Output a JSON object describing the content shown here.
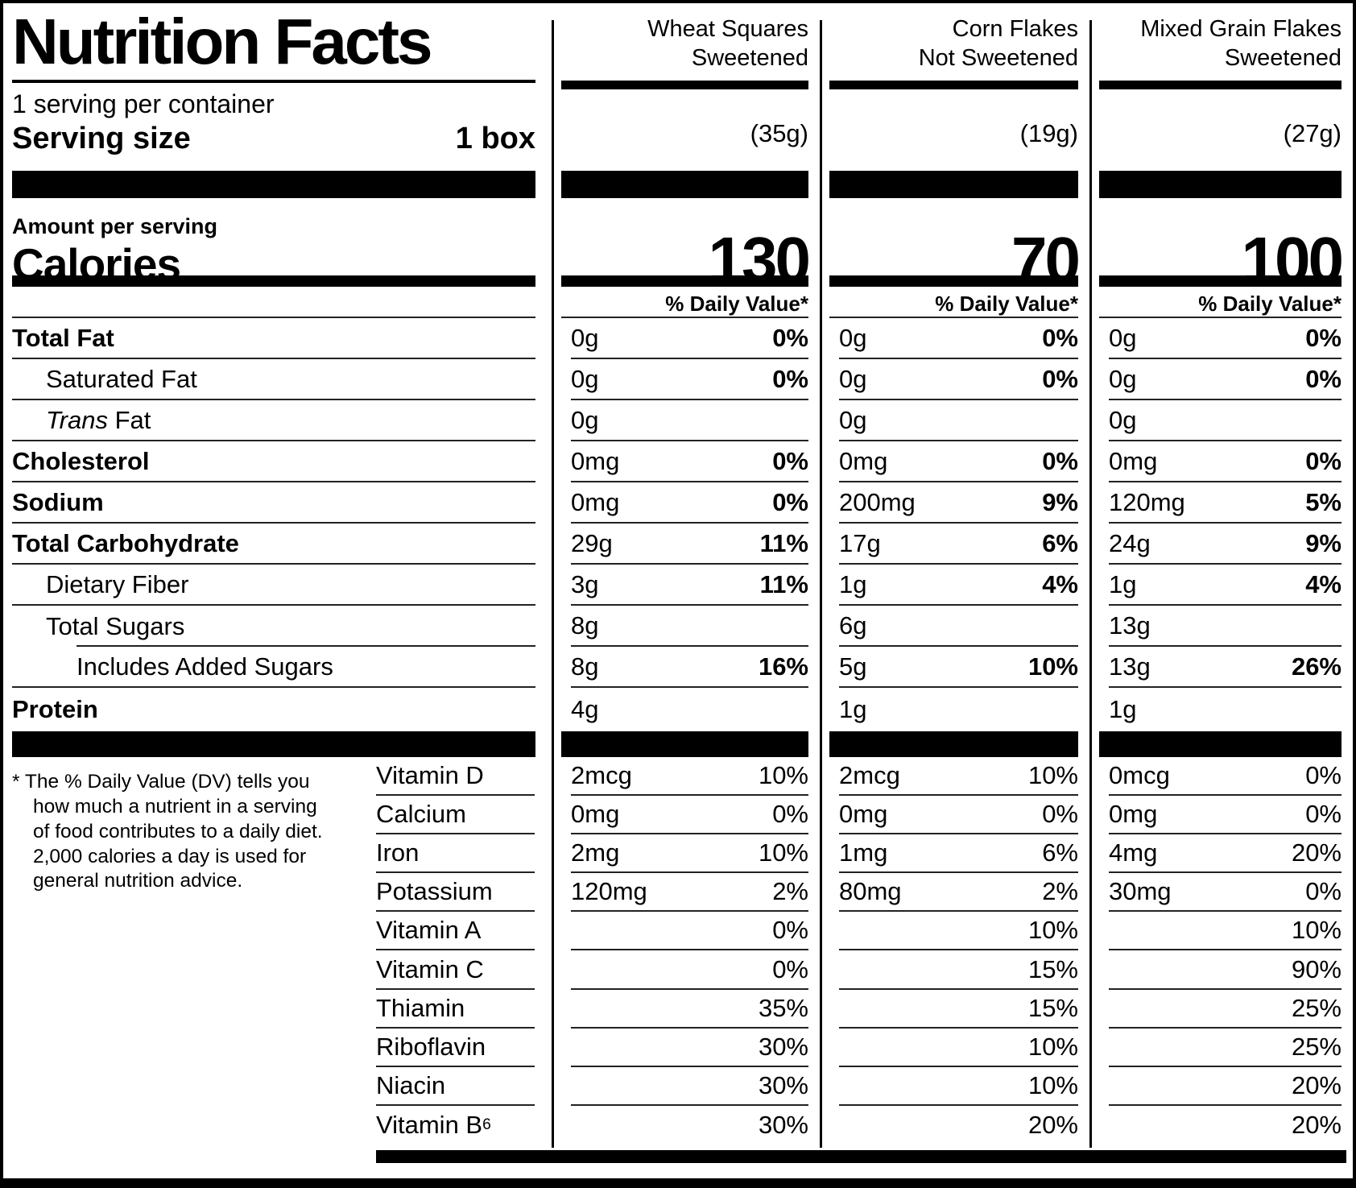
{
  "label": {
    "title": "Nutrition Facts",
    "servings_per_container": "1 serving per container",
    "serving_size_label": "Serving size",
    "serving_size_value": "1 box",
    "amount_per_serving_label": "Amount per serving",
    "calories_label": "Calories",
    "daily_value_header": "% Daily Value*",
    "footnote_marker": "*",
    "footnote_text": "The % Daily Value (DV) tells you how much a nutrient in a serving of food contributes to a daily diet. 2,000 calories a day is used for general nutrition advice."
  },
  "products": [
    {
      "name_lines": [
        "Wheat Squares",
        "Sweetened"
      ],
      "serving_weight": "(35g)",
      "calories": "130"
    },
    {
      "name_lines": [
        "Corn Flakes",
        "Not Sweetened"
      ],
      "serving_weight": "(19g)",
      "calories": "70"
    },
    {
      "name_lines": [
        "Mixed Grain Flakes",
        "Sweetened"
      ],
      "serving_weight": "(27g)",
      "calories": "100"
    }
  ],
  "nutrient_rows": [
    {
      "name": "Total Fat",
      "bold": true,
      "indent": 0,
      "values": [
        {
          "amount": "0g",
          "pct": "0%"
        },
        {
          "amount": "0g",
          "pct": "0%"
        },
        {
          "amount": "0g",
          "pct": "0%"
        }
      ]
    },
    {
      "name": "Saturated Fat",
      "bold": false,
      "indent": 1,
      "values": [
        {
          "amount": "0g",
          "pct": "0%"
        },
        {
          "amount": "0g",
          "pct": "0%"
        },
        {
          "amount": "0g",
          "pct": "0%"
        }
      ]
    },
    {
      "name": " Fat",
      "italic_prefix": "Trans",
      "bold": false,
      "indent": 1,
      "values": [
        {
          "amount": "0g",
          "pct": ""
        },
        {
          "amount": "0g",
          "pct": ""
        },
        {
          "amount": "0g",
          "pct": ""
        }
      ]
    },
    {
      "name": "Cholesterol",
      "bold": true,
      "indent": 0,
      "values": [
        {
          "amount": "0mg",
          "pct": "0%"
        },
        {
          "amount": "0mg",
          "pct": "0%"
        },
        {
          "amount": "0mg",
          "pct": "0%"
        }
      ]
    },
    {
      "name": "Sodium",
      "bold": true,
      "indent": 0,
      "values": [
        {
          "amount": "0mg",
          "pct": "0%"
        },
        {
          "amount": "200mg",
          "pct": "9%"
        },
        {
          "amount": "120mg",
          "pct": "5%"
        }
      ]
    },
    {
      "name": "Total Carbohydrate",
      "bold": true,
      "indent": 0,
      "values": [
        {
          "amount": "29g",
          "pct": "11%"
        },
        {
          "amount": "17g",
          "pct": "6%"
        },
        {
          "amount": "24g",
          "pct": "9%"
        }
      ]
    },
    {
      "name": "Dietary Fiber",
      "bold": false,
      "indent": 1,
      "values": [
        {
          "amount": "3g",
          "pct": "11%"
        },
        {
          "amount": "1g",
          "pct": "4%"
        },
        {
          "amount": "1g",
          "pct": "4%"
        }
      ]
    },
    {
      "name": "Total Sugars",
      "bold": false,
      "indent": 1,
      "left_rule_indented_below": true,
      "values": [
        {
          "amount": "8g",
          "pct": ""
        },
        {
          "amount": "6g",
          "pct": ""
        },
        {
          "amount": "13g",
          "pct": ""
        }
      ]
    },
    {
      "name": "Includes Added Sugars",
      "bold": false,
      "indent": 2,
      "values": [
        {
          "amount": "8g",
          "pct": "16%"
        },
        {
          "amount": "5g",
          "pct": "10%"
        },
        {
          "amount": "13g",
          "pct": "26%"
        }
      ]
    },
    {
      "name": "Protein",
      "bold": true,
      "indent": 0,
      "no_rule_below": true,
      "values": [
        {
          "amount": "4g",
          "pct": ""
        },
        {
          "amount": "1g",
          "pct": ""
        },
        {
          "amount": "1g",
          "pct": ""
        }
      ]
    }
  ],
  "vitamin_rows": [
    {
      "name": "Vitamin D",
      "values": [
        {
          "amount": "2mcg",
          "pct": "10%"
        },
        {
          "amount": "2mcg",
          "pct": "10%"
        },
        {
          "amount": "0mcg",
          "pct": "0%"
        }
      ]
    },
    {
      "name": "Calcium",
      "values": [
        {
          "amount": "0mg",
          "pct": "0%"
        },
        {
          "amount": "0mg",
          "pct": "0%"
        },
        {
          "amount": "0mg",
          "pct": "0%"
        }
      ]
    },
    {
      "name": "Iron",
      "values": [
        {
          "amount": "2mg",
          "pct": "10%"
        },
        {
          "amount": "1mg",
          "pct": "6%"
        },
        {
          "amount": "4mg",
          "pct": "20%"
        }
      ]
    },
    {
      "name": "Potassium",
      "values": [
        {
          "amount": "120mg",
          "pct": "2%"
        },
        {
          "amount": "80mg",
          "pct": "2%"
        },
        {
          "amount": "30mg",
          "pct": "0%"
        }
      ]
    },
    {
      "name": "Vitamin A",
      "values": [
        {
          "amount": "",
          "pct": "0%"
        },
        {
          "amount": "",
          "pct": "10%"
        },
        {
          "amount": "",
          "pct": "10%"
        }
      ]
    },
    {
      "name": "Vitamin C",
      "values": [
        {
          "amount": "",
          "pct": "0%"
        },
        {
          "amount": "",
          "pct": "15%"
        },
        {
          "amount": "",
          "pct": "90%"
        }
      ]
    },
    {
      "name": "Thiamin",
      "values": [
        {
          "amount": "",
          "pct": "35%"
        },
        {
          "amount": "",
          "pct": "15%"
        },
        {
          "amount": "",
          "pct": "25%"
        }
      ]
    },
    {
      "name": "Riboflavin",
      "values": [
        {
          "amount": "",
          "pct": "30%"
        },
        {
          "amount": "",
          "pct": "10%"
        },
        {
          "amount": "",
          "pct": "25%"
        }
      ]
    },
    {
      "name": "Niacin",
      "values": [
        {
          "amount": "",
          "pct": "30%"
        },
        {
          "amount": "",
          "pct": "10%"
        },
        {
          "amount": "",
          "pct": "20%"
        }
      ]
    },
    {
      "name": "Vitamin B",
      "subscript": "6",
      "values": [
        {
          "amount": "",
          "pct": "30%"
        },
        {
          "amount": "",
          "pct": "20%"
        },
        {
          "amount": "",
          "pct": "20%"
        }
      ]
    }
  ],
  "colors": {
    "ink": "#000000",
    "rule": "#222222",
    "background": "#ffffff"
  }
}
